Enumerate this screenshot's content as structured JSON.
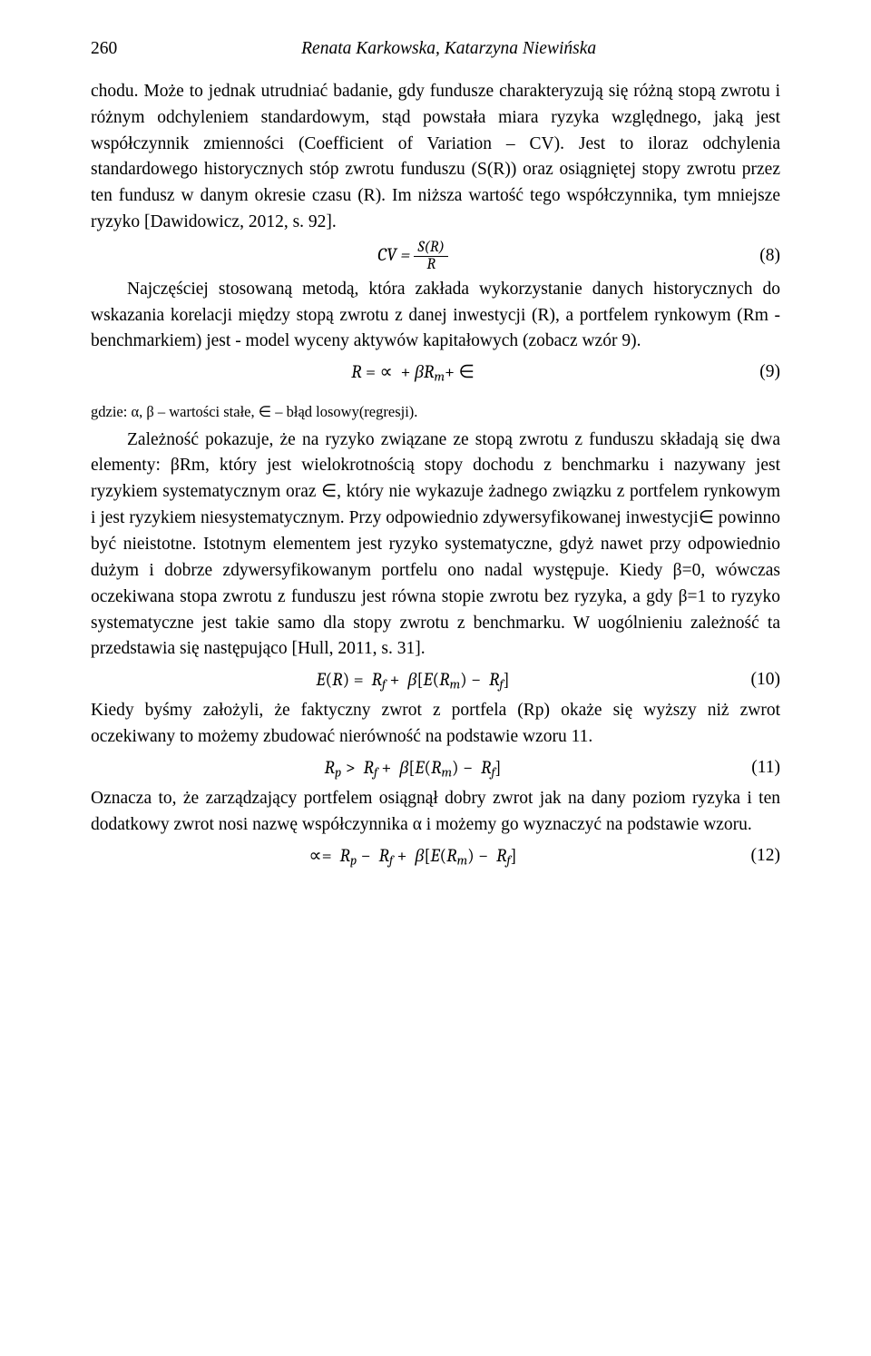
{
  "header": {
    "page_number": "260",
    "running_title": "Renata Karkowska, Katarzyna Niewińska"
  },
  "para_lead_word": "chodu. ",
  "para1": "Może to jednak utrudniać badanie, gdy fundusze charakteryzują się różną stopą zwrotu i różnym odchyleniem standardowym, stąd powstała miara ryzyka względnego, jaką jest współczynnik zmienności (Coefficient of Variation – CV). Jest to iloraz odchylenia standardowego historycznych stóp zwrotu funduszu (S(R)) oraz osiągniętej stopy zwrotu przez ten fundusz w danym okresie czasu (R). Im niższa wartość tego współczynnika, tym mniejsze ryzyko [Dawidowicz, 2012, s. 92].",
  "eq8": {
    "lhs": "CV =",
    "frac_num": "S(R)",
    "frac_den": "R",
    "num": "(8)"
  },
  "para2": "Najczęściej stosowaną metodą, która zakłada wykorzystanie danych historycznych do wskazania korelacji między stopą zwrotu z danej inwestycji (R), a portfelem rynkowym (Rm - benchmarkiem) jest - model wyceny aktywów kapitałowych (zobacz wzór 9).",
  "eq9": {
    "expr_html": "<span class='mi'>R</span> = ∝ &nbsp;+ <span class='mi'>βR</span><span class='sub'>m</span>+ ∈",
    "num": "(9)"
  },
  "note": "gdzie: α, β – wartości stałe, ∈ – błąd losowy(regresji).",
  "para3": "Zależność pokazuje, że na ryzyko związane ze stopą zwrotu z funduszu składają się dwa elementy: βRm, który jest wielokrotnością stopy dochodu z benchmarku i nazywany jest ryzykiem systematycznym oraz ∈, który nie wykazuje żadnego związku z portfelem rynkowym i jest ryzykiem niesystematycznym. Przy odpowiednio zdywersyfikowanej inwestycji∈ powinno być nieistotne. Istotnym elementem jest ryzyko systematyczne, gdyż nawet przy odpowiednio dużym i dobrze zdywersyfikowanym portfelu ono nadal występuje. Kiedy β=0, wówczas oczekiwana stopa zwrotu z funduszu jest równa stopie zwrotu bez ryzyka, a gdy β=1 to ryzyko systematyczne jest takie samo dla stopy zwrotu z benchmarku. W uogólnieniu zależność ta przedstawia się następująco [Hull, 2011, s. 31].",
  "eq10": {
    "expr_html": "<span class='mi'>E</span>(<span class='mi'>R</span>) = &nbsp;<span class='mi'>R</span><span class='sub'>f</span> + &nbsp;<span class='mi'>β</span>[<span class='mi'>E</span>(<span class='mi'>R</span><span class='sub'>m</span>) − &nbsp;<span class='mi'>R</span><span class='sub'>f</span>]",
    "num": "(10)"
  },
  "para4": "Kiedy byśmy założyli, że faktyczny zwrot z portfela (Rp) okaże się wyższy niż zwrot oczekiwany to możemy zbudować nierówność na podstawie wzoru 11.",
  "eq11": {
    "expr_html": "<span class='mi'>R</span><span class='sub'>p</span> &gt; &nbsp;<span class='mi'>R</span><span class='sub'>f</span> + &nbsp;<span class='mi'>β</span>[<span class='mi'>E</span>(<span class='mi'>R</span><span class='sub'>m</span>) − &nbsp;<span class='mi'>R</span><span class='sub'>f</span>]",
    "num": "(11)"
  },
  "para5": "Oznacza to, że zarządzający portfelem osiągnął dobry zwrot jak na dany poziom ryzyka i ten dodatkowy zwrot nosi nazwę współczynnika α i możemy go wyznaczyć na podstawie wzoru.",
  "eq12": {
    "expr_html": "∝= &nbsp;<span class='mi'>R</span><span class='sub'>p</span> − &nbsp;<span class='mi'>R</span><span class='sub'>f</span> + &nbsp;<span class='mi'>β</span>[<span class='mi'>E</span>(<span class='mi'>R</span><span class='sub'>m</span>) − &nbsp;<span class='mi'>R</span><span class='sub'>f</span>]",
    "num": "(12)"
  }
}
